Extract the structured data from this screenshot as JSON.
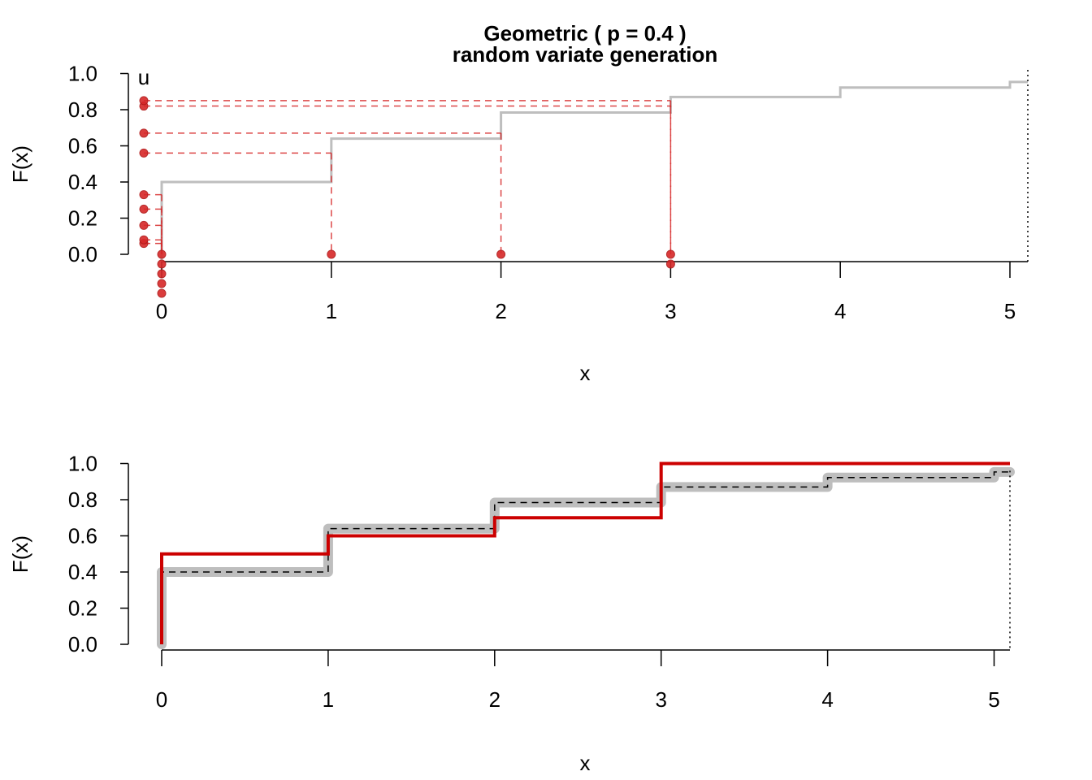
{
  "chart_data": [
    {
      "type": "line",
      "title": "Geometric ( p = 0.4 )",
      "subtitle": "random variate generation",
      "xlabel": "x",
      "ylabel": "F(x)",
      "annotation": "u",
      "xlim": [
        -0.2,
        5.1
      ],
      "ylim": [
        0,
        1
      ],
      "x_ticks": [
        "0",
        "1",
        "2",
        "3",
        "4",
        "5"
      ],
      "y_ticks": [
        "0.0",
        "0.2",
        "0.4",
        "0.6",
        "0.8",
        "1.0"
      ],
      "grid": false,
      "colors": {
        "cdf": "#bebebe",
        "samples": "#d62728",
        "dotted": "#000000"
      },
      "series": [
        {
          "kind": "step-cdf",
          "x": [
            0,
            1,
            2,
            3,
            4,
            5
          ],
          "y": [
            0.4,
            0.64,
            0.784,
            0.8704,
            0.92224,
            0.953344
          ]
        },
        {
          "kind": "uniform-samples",
          "u": [
            0.06,
            0.08,
            0.16,
            0.25,
            0.33,
            0.56,
            0.67,
            0.82,
            0.85
          ],
          "x": [
            0,
            0,
            0,
            0,
            0,
            1,
            2,
            3,
            3
          ]
        }
      ]
    },
    {
      "type": "line",
      "xlabel": "x",
      "ylabel": "F(x)",
      "xlim": [
        -0.05,
        5.1
      ],
      "ylim": [
        0,
        1
      ],
      "x_ticks": [
        "0",
        "1",
        "2",
        "3",
        "4",
        "5"
      ],
      "y_ticks": [
        "0.0",
        "0.2",
        "0.4",
        "0.6",
        "0.8",
        "1.0"
      ],
      "grid": false,
      "colors": {
        "theoretical": "#bebebe",
        "dashed": "#000000",
        "empirical": "#cc0000"
      },
      "series": [
        {
          "kind": "theoretical-cdf",
          "x": [
            0,
            1,
            2,
            3,
            4,
            5
          ],
          "y": [
            0.4,
            0.64,
            0.784,
            0.8704,
            0.92224,
            0.953344
          ]
        },
        {
          "kind": "empirical-cdf",
          "x": [
            0,
            1,
            2,
            3
          ],
          "y": [
            0.5,
            0.6,
            0.7,
            1.0
          ]
        }
      ]
    }
  ]
}
